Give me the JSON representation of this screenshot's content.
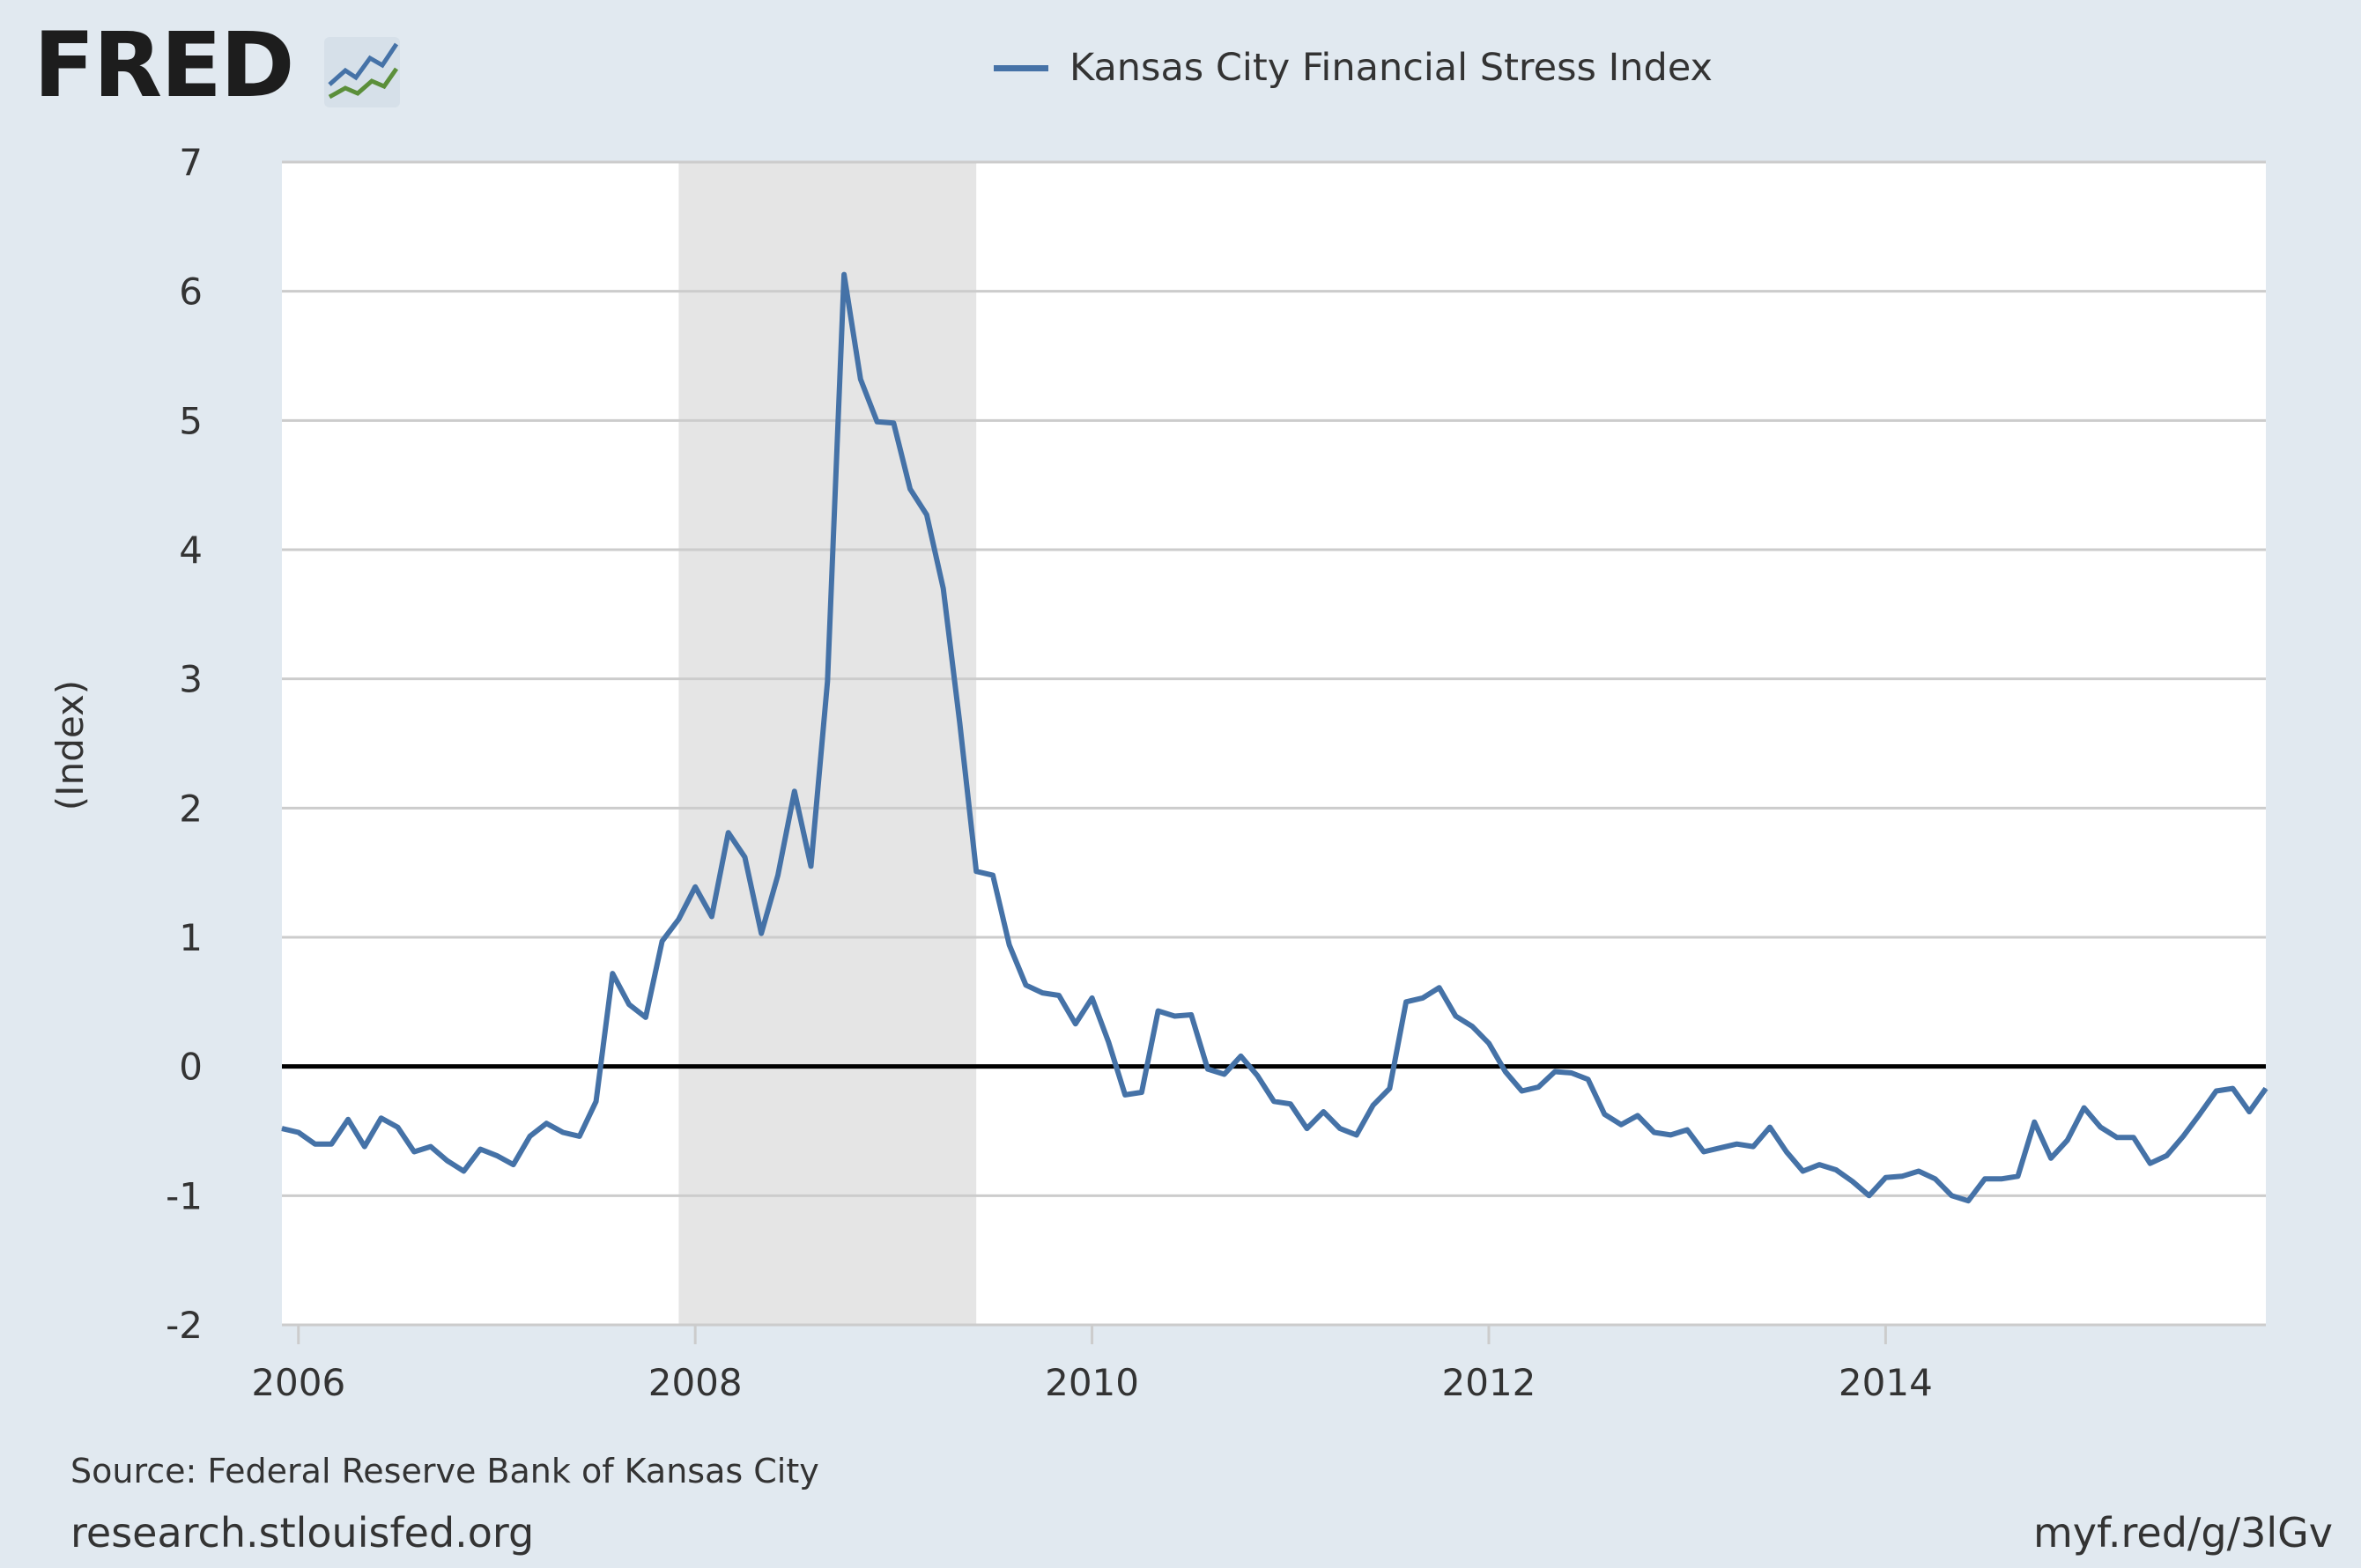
{
  "header": {
    "logo_text": "FRED",
    "logo_icon": "fred-chart-icon"
  },
  "footer": {
    "source": "Source: Federal Reserve Bank of Kansas City",
    "site": "research.stlouisfed.org",
    "short_url": "myf.red/g/3lGv"
  },
  "colors": {
    "series": "#4572a7",
    "recession": "#e5e5e5",
    "background": "#e1e9f0",
    "plot": "#ffffff",
    "zero_line": "#000000"
  },
  "chart_data": {
    "type": "line",
    "title": "",
    "xlabel": "",
    "ylabel": "(Index)",
    "ylim": [
      -2,
      7
    ],
    "yticks": [
      -2,
      -1,
      0,
      1,
      2,
      3,
      4,
      5,
      6,
      7
    ],
    "xlim": [
      "2005-12",
      "2015-12"
    ],
    "xticks": [
      "2006",
      "2008",
      "2010",
      "2012",
      "2014"
    ],
    "grid": true,
    "legend_position": "top",
    "reference_line": 0,
    "recession_shading": [
      {
        "start": "2007-12",
        "end": "2009-06"
      }
    ],
    "series": [
      {
        "name": "Kansas City Financial Stress Index",
        "x": [
          "2005-12",
          "2006-01",
          "2006-02",
          "2006-03",
          "2006-04",
          "2006-05",
          "2006-06",
          "2006-07",
          "2006-08",
          "2006-09",
          "2006-10",
          "2006-11",
          "2006-12",
          "2007-01",
          "2007-02",
          "2007-03",
          "2007-04",
          "2007-05",
          "2007-06",
          "2007-07",
          "2007-08",
          "2007-09",
          "2007-10",
          "2007-11",
          "2007-12",
          "2008-01",
          "2008-02",
          "2008-03",
          "2008-04",
          "2008-05",
          "2008-06",
          "2008-07",
          "2008-08",
          "2008-09",
          "2008-10",
          "2008-11",
          "2008-12",
          "2009-01",
          "2009-02",
          "2009-03",
          "2009-04",
          "2009-05",
          "2009-06",
          "2009-07",
          "2009-08",
          "2009-09",
          "2009-10",
          "2009-11",
          "2009-12",
          "2010-01",
          "2010-02",
          "2010-03",
          "2010-04",
          "2010-05",
          "2010-06",
          "2010-07",
          "2010-08",
          "2010-09",
          "2010-10",
          "2010-11",
          "2010-12",
          "2011-01",
          "2011-02",
          "2011-03",
          "2011-04",
          "2011-05",
          "2011-06",
          "2011-07",
          "2011-08",
          "2011-09",
          "2011-10",
          "2011-11",
          "2011-12",
          "2012-01",
          "2012-02",
          "2012-03",
          "2012-04",
          "2012-05",
          "2012-06",
          "2012-07",
          "2012-08",
          "2012-09",
          "2012-10",
          "2012-11",
          "2012-12",
          "2013-01",
          "2013-02",
          "2013-03",
          "2013-04",
          "2013-05",
          "2013-06",
          "2013-07",
          "2013-08",
          "2013-09",
          "2013-10",
          "2013-11",
          "2013-12",
          "2014-01",
          "2014-02",
          "2014-03",
          "2014-04",
          "2014-05",
          "2014-06",
          "2014-07",
          "2014-08",
          "2014-09",
          "2014-10",
          "2014-11",
          "2014-12",
          "2015-01",
          "2015-02",
          "2015-03",
          "2015-04",
          "2015-05",
          "2015-06",
          "2015-07",
          "2015-08",
          "2015-09",
          "2015-10",
          "2015-11",
          "2015-12"
        ],
        "values": [
          -0.48,
          -0.51,
          -0.6,
          -0.6,
          -0.41,
          -0.62,
          -0.4,
          -0.47,
          -0.66,
          -0.62,
          -0.73,
          -0.81,
          -0.64,
          -0.69,
          -0.76,
          -0.54,
          -0.44,
          -0.51,
          -0.54,
          -0.27,
          0.72,
          0.48,
          0.38,
          0.97,
          1.14,
          1.39,
          1.16,
          1.81,
          1.62,
          1.03,
          1.48,
          2.13,
          1.55,
          2.98,
          6.13,
          5.32,
          4.99,
          4.98,
          4.47,
          4.27,
          3.7,
          2.66,
          1.51,
          1.48,
          0.94,
          0.63,
          0.57,
          0.55,
          0.33,
          0.53,
          0.19,
          -0.22,
          -0.2,
          0.43,
          0.39,
          0.4,
          -0.02,
          -0.06,
          0.08,
          -0.07,
          -0.27,
          -0.29,
          -0.48,
          -0.35,
          -0.48,
          -0.53,
          -0.3,
          -0.17,
          0.5,
          0.53,
          0.61,
          0.39,
          0.31,
          0.18,
          -0.04,
          -0.19,
          -0.16,
          -0.04,
          -0.05,
          -0.1,
          -0.37,
          -0.45,
          -0.38,
          -0.51,
          -0.53,
          -0.49,
          -0.66,
          -0.63,
          -0.6,
          -0.62,
          -0.47,
          -0.66,
          -0.81,
          -0.76,
          -0.8,
          -0.89,
          -1.0,
          -0.86,
          -0.85,
          -0.81,
          -0.87,
          -1.0,
          -1.04,
          -0.87,
          -0.87,
          -0.85,
          -0.43,
          -0.71,
          -0.57,
          -0.32,
          -0.47,
          -0.55,
          -0.55,
          -0.75,
          -0.69,
          -0.54,
          -0.37,
          -0.19,
          -0.17,
          -0.35,
          -0.17
        ]
      }
    ]
  }
}
